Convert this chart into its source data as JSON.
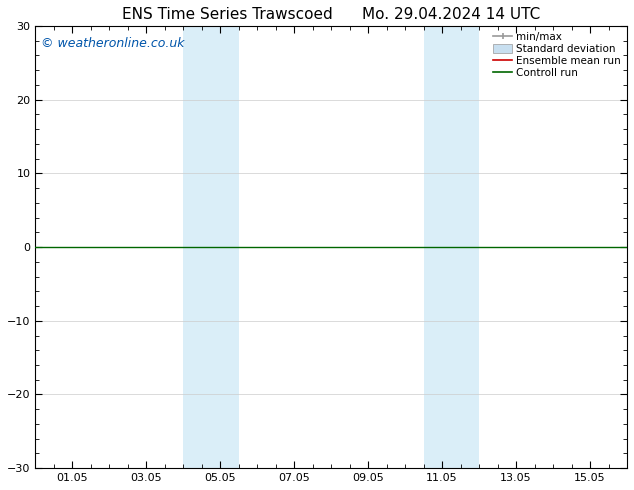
{
  "title_left": "ENS Time Series Trawscoed",
  "title_right": "Mo. 29.04.2024 14 UTC",
  "ylim": [
    -30,
    30
  ],
  "yticks": [
    -30,
    -20,
    -10,
    0,
    10,
    20,
    30
  ],
  "xtick_labels": [
    "01.05",
    "03.05",
    "05.05",
    "07.05",
    "09.05",
    "11.05",
    "13.05",
    "15.05"
  ],
  "xtick_positions": [
    1,
    3,
    5,
    7,
    9,
    11,
    13,
    15
  ],
  "xmin": 0,
  "xmax": 16,
  "watermark": "© weatheronline.co.uk",
  "watermark_color": "#0055aa",
  "shaded_bands": [
    {
      "xstart": 4.0,
      "xend": 5.5
    },
    {
      "xstart": 10.5,
      "xend": 12.0
    }
  ],
  "shade_color": "#daeef8",
  "line_color": "#006600",
  "line_linewidth": 1.0,
  "ensemble_mean_color": "#cc0000",
  "bg_color": "#ffffff",
  "legend_labels": [
    "min/max",
    "Standard deviation",
    "Ensemble mean run",
    "Controll run"
  ],
  "minmax_color": "#999999",
  "std_color": "#c8dff0",
  "grid_color": "#cccccc",
  "title_fontsize": 11,
  "tick_fontsize": 8,
  "watermark_fontsize": 9
}
